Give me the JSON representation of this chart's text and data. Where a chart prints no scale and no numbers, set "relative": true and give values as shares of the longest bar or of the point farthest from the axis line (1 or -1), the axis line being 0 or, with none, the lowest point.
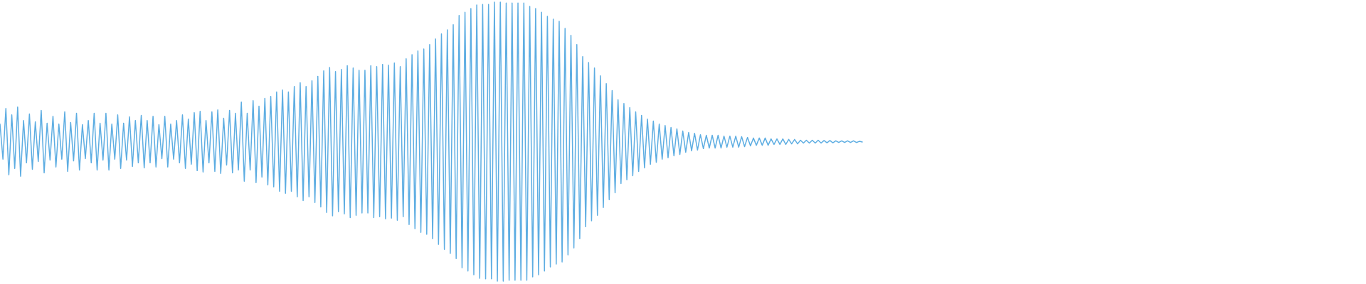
{
  "chart_data": {
    "type": "line",
    "relative": true,
    "color": "#5dade2",
    "categories": [
      null,
      null,
      null,
      null,
      null,
      null,
      null,
      null,
      null,
      null,
      null,
      null,
      null,
      null,
      null,
      null,
      null,
      null,
      null,
      null,
      null,
      null,
      null,
      null,
      null,
      null,
      null,
      null,
      null,
      null,
      null,
      null,
      null,
      null,
      null,
      null,
      null,
      null,
      null,
      null,
      null,
      null,
      null,
      null,
      null,
      null,
      null,
      null,
      null,
      null,
      null,
      null,
      null,
      null,
      null,
      null,
      null,
      null,
      null,
      null,
      null,
      null,
      null,
      null,
      null,
      null,
      null,
      null,
      null,
      null,
      null,
      null,
      null,
      null,
      null,
      null,
      null,
      null,
      null,
      null,
      null,
      null,
      null,
      null,
      null,
      null,
      null,
      null,
      null,
      null,
      null,
      null,
      null,
      null,
      null,
      null,
      null,
      null,
      null,
      null,
      null,
      null,
      null,
      null,
      null,
      null,
      null,
      null,
      null,
      null,
      null,
      null,
      null,
      null,
      null,
      null,
      null,
      null,
      null,
      null,
      null,
      null,
      null,
      null,
      null,
      null,
      null,
      null,
      null,
      null,
      null,
      null,
      null,
      null,
      null,
      null,
      null,
      null,
      null,
      null,
      null,
      null,
      null,
      null,
      null,
      null,
      null,
      null,
      null,
      null,
      null,
      null,
      null,
      null,
      null,
      null,
      null,
      null,
      null,
      null,
      null,
      null,
      null,
      null,
      null,
      null,
      null,
      null,
      null,
      null,
      null,
      null,
      null,
      null,
      null,
      null,
      null,
      null,
      null,
      null,
      null,
      null,
      null,
      null,
      null,
      null,
      null,
      null,
      null,
      null,
      null,
      null,
      null,
      null,
      null,
      null,
      null,
      null,
      null,
      null,
      null,
      null,
      null,
      null,
      null,
      null,
      null,
      null,
      null,
      null,
      null,
      null,
      null,
      null,
      null,
      null,
      null,
      null,
      null,
      null,
      null,
      null,
      null,
      null,
      null,
      null,
      null,
      null,
      null,
      null,
      null,
      null,
      null,
      null,
      null,
      null,
      null,
      null,
      null,
      null,
      null,
      null,
      null,
      null,
      null,
      null,
      null,
      null,
      null,
      null,
      null,
      null,
      null,
      null,
      null,
      null,
      null,
      null,
      null,
      null,
      null,
      null,
      null,
      null,
      null,
      null,
      null,
      null,
      null,
      null,
      null,
      null,
      null,
      null,
      null,
      null,
      null,
      null,
      null,
      null,
      null,
      null,
      null,
      null,
      null,
      null,
      null,
      null,
      null,
      null,
      null,
      null,
      null,
      null
    ],
    "values": [
      0.563,
      0.437,
      0.619,
      0.381,
      0.596,
      0.404,
      0.624,
      0.376,
      0.576,
      0.424,
      0.599,
      0.401,
      0.571,
      0.429,
      0.612,
      0.388,
      0.566,
      0.434,
      0.591,
      0.409,
      0.563,
      0.437,
      0.607,
      0.393,
      0.569,
      0.431,
      0.602,
      0.398,
      0.561,
      0.439,
      0.576,
      0.424,
      0.602,
      0.398,
      0.566,
      0.434,
      0.602,
      0.398,
      0.563,
      0.437,
      0.596,
      0.404,
      0.566,
      0.434,
      0.589,
      0.411,
      0.576,
      0.424,
      0.594,
      0.406,
      0.576,
      0.424,
      0.591,
      0.409,
      0.561,
      0.439,
      0.591,
      0.409,
      0.563,
      0.437,
      0.576,
      0.424,
      0.596,
      0.404,
      0.581,
      0.419,
      0.604,
      0.396,
      0.609,
      0.391,
      0.576,
      0.424,
      0.607,
      0.393,
      0.614,
      0.386,
      0.584,
      0.416,
      0.612,
      0.388,
      0.602,
      0.398,
      0.642,
      0.358,
      0.602,
      0.398,
      0.647,
      0.353,
      0.627,
      0.373,
      0.655,
      0.345,
      0.662,
      0.338,
      0.678,
      0.322,
      0.685,
      0.315,
      0.678,
      0.322,
      0.698,
      0.302,
      0.711,
      0.289,
      0.698,
      0.302,
      0.718,
      0.282,
      0.734,
      0.266,
      0.754,
      0.246,
      0.766,
      0.234,
      0.751,
      0.249,
      0.759,
      0.241,
      0.772,
      0.228,
      0.764,
      0.236,
      0.756,
      0.244,
      0.756,
      0.244,
      0.772,
      0.228,
      0.769,
      0.231,
      0.777,
      0.223,
      0.774,
      0.226,
      0.782,
      0.218,
      0.769,
      0.231,
      0.797,
      0.203,
      0.812,
      0.188,
      0.825,
      0.175,
      0.832,
      0.168,
      0.848,
      0.152,
      0.868,
      0.132,
      0.886,
      0.114,
      0.901,
      0.099,
      0.919,
      0.081,
      0.952,
      0.048,
      0.964,
      0.036,
      0.977,
      0.023,
      0.99,
      0.01,
      0.992,
      0.008,
      0.992,
      0.008,
      1,
      0,
      1,
      0,
      0.997,
      0.003,
      0.997,
      0.003,
      0.997,
      0.003,
      0.997,
      0.003,
      0.985,
      0.015,
      0.977,
      0.023,
      0.964,
      0.036,
      0.949,
      0.051,
      0.939,
      0.061,
      0.931,
      0.069,
      0.906,
      0.094,
      0.881,
      0.119,
      0.848,
      0.152,
      0.805,
      0.195,
      0.784,
      0.216,
      0.764,
      0.236,
      0.736,
      0.264,
      0.708,
      0.292,
      0.683,
      0.317,
      0.65,
      0.35,
      0.637,
      0.363,
      0.622,
      0.378,
      0.607,
      0.393,
      0.594,
      0.406,
      0.581,
      0.419,
      0.574,
      0.426,
      0.563,
      0.437,
      0.558,
      0.442,
      0.551,
      0.449,
      0.546,
      0.454,
      0.538,
      0.462,
      0.533,
      0.467,
      0.53,
      0.47,
      0.525,
      0.475,
      0.523,
      0.477,
      0.523,
      0.477,
      0.523,
      0.477,
      0.52,
      0.48,
      0.52,
      0.48,
      0.52,
      0.48,
      0.518,
      0.482,
      0.515,
      0.485,
      0.513,
      0.487,
      0.513,
      0.487,
      0.513,
      0.487,
      0.51,
      0.49,
      0.51,
      0.49,
      0.51,
      0.49,
      0.508,
      0.492,
      0.508,
      0.492,
      0.505,
      0.495,
      0.505,
      0.495,
      0.505,
      0.495,
      0.505,
      0.495,
      0.504,
      0.496,
      0.504,
      0.496,
      0.503,
      0.497,
      0.503,
      0.497,
      0.503,
      0.497,
      0.503,
      0.497,
      0.501,
      0.499
    ]
  }
}
